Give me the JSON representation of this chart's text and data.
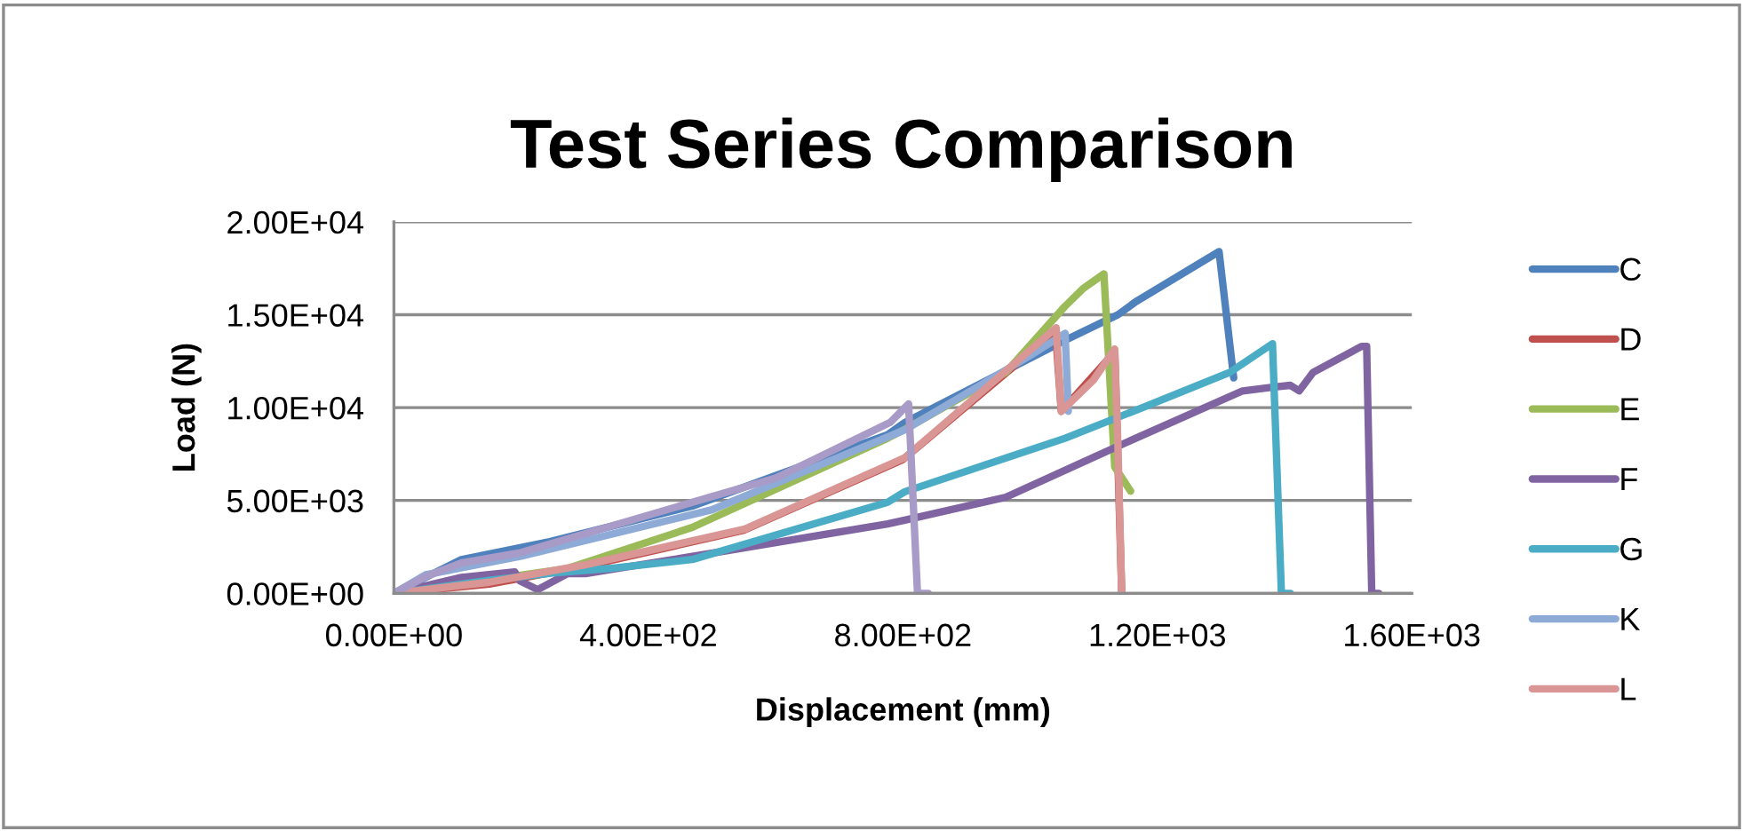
{
  "chart_data": {
    "type": "line",
    "title": "Test Series Comparison",
    "xlabel": "Displacement (mm)",
    "ylabel": "Load (N)",
    "xlim": [
      0,
      1600
    ],
    "ylim": [
      0,
      20000
    ],
    "xticks": [
      {
        "value": 0,
        "label": "0.00E+00"
      },
      {
        "value": 400,
        "label": "4.00E+02"
      },
      {
        "value": 800,
        "label": "8.00E+02"
      },
      {
        "value": 1200,
        "label": "1.20E+03"
      },
      {
        "value": 1600,
        "label": "1.60E+03"
      }
    ],
    "yticks": [
      {
        "value": 0,
        "label": "0.00E+00"
      },
      {
        "value": 5000,
        "label": "5.00E+03"
      },
      {
        "value": 10000,
        "label": "1.00E+04"
      },
      {
        "value": 15000,
        "label": "1.50E+04"
      },
      {
        "value": 20000,
        "label": "2.00E+04"
      }
    ],
    "grid": "y",
    "legend": "right",
    "marker": "none",
    "line_style": "solid",
    "series": [
      {
        "name": "C",
        "color": "#4f81bd",
        "x": [
          0,
          50,
          106,
          245,
          469,
          776,
          803,
          1055,
          1138,
          1166,
          1297,
          1320
        ],
        "values": [
          0,
          860,
          1820,
          2780,
          4700,
          8540,
          9200,
          13630,
          15000,
          15700,
          18400,
          11600
        ]
      },
      {
        "name": "D",
        "color": "#c0504d",
        "x": [
          0,
          150,
          300,
          550,
          800,
          1040,
          1049,
          1133,
          1144
        ],
        "values": [
          0,
          500,
          1450,
          3400,
          7200,
          14100,
          9800,
          13000,
          0
        ]
      },
      {
        "name": "E",
        "color": "#9bbb59",
        "x": [
          0,
          273,
          469,
          776,
          803,
          962,
          1055,
          1083,
          1116,
          1133,
          1158
        ],
        "values": [
          0,
          1340,
          3550,
          8350,
          8830,
          11900,
          15460,
          16400,
          17200,
          6800,
          5500
        ]
      },
      {
        "name": "F",
        "color": "#8064a2",
        "x": [
          0,
          106,
          190,
          198,
          226,
          273,
          301,
          525,
          776,
          803,
          962,
          1147,
          1334,
          1381,
          1409,
          1423,
          1445,
          1521,
          1529,
          1537,
          1548
        ],
        "values": [
          0,
          860,
          1150,
          670,
          200,
          1060,
          1060,
          2300,
          3740,
          3940,
          5180,
          8060,
          10900,
          11100,
          11200,
          10900,
          11900,
          13300,
          13300,
          0,
          0
        ]
      },
      {
        "name": "G",
        "color": "#4bacc6",
        "x": [
          0,
          150,
          250,
          338,
          469,
          776,
          803,
          1055,
          1175,
          1314,
          1381,
          1395,
          1409
        ],
        "values": [
          0,
          700,
          1100,
          1340,
          1820,
          4900,
          5470,
          8350,
          9980,
          11900,
          13440,
          0,
          0
        ]
      },
      {
        "name": "K",
        "color": "#8eaad6",
        "x": [
          0,
          50,
          200,
          500,
          803,
          1000,
          1055,
          1060
        ],
        "values": [
          0,
          1000,
          2000,
          4500,
          8800,
          12800,
          14000,
          9800
        ]
      },
      {
        "name": "L",
        "color": "#d99694",
        "x": [
          0,
          150,
          301,
          552,
          803,
          1041,
          1049,
          1100,
          1133,
          1138,
          1144
        ],
        "values": [
          0,
          600,
          1540,
          3460,
          7300,
          14300,
          9800,
          11500,
          13150,
          8000,
          0
        ]
      },
      {
        "color": "#a89bc8",
        "x": [
          0,
          50,
          106,
          200,
          469,
          600,
          780,
          809,
          823,
          840
        ],
        "values": [
          0,
          900,
          1630,
          2200,
          4900,
          6200,
          9200,
          10200,
          0,
          0
        ]
      }
    ]
  }
}
